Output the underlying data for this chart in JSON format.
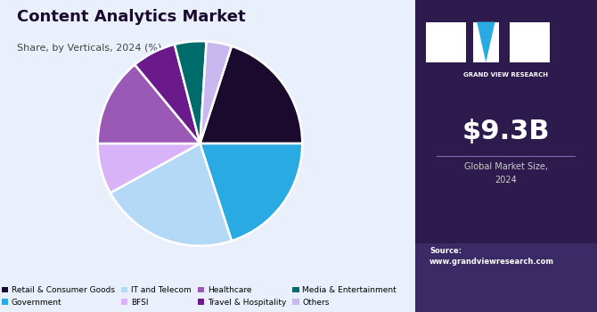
{
  "title": "Content Analytics Market",
  "subtitle": "Share, by Verticals, 2024 (%)",
  "slices": [
    {
      "label": "Retail & Consumer Goods",
      "value": 20,
      "color": "#1a0a2e"
    },
    {
      "label": "Government",
      "value": 20,
      "color": "#29aae2"
    },
    {
      "label": "IT and Telecom",
      "value": 22,
      "color": "#b3d9f7"
    },
    {
      "label": "BFSI",
      "value": 8,
      "color": "#d9b3f7"
    },
    {
      "label": "Healthcare",
      "value": 14,
      "color": "#9b59b6"
    },
    {
      "label": "Travel & Hospitality",
      "value": 7,
      "color": "#6a1a8a"
    },
    {
      "label": "Media & Entertainment",
      "value": 5,
      "color": "#006b6b"
    },
    {
      "label": "Others",
      "value": 4,
      "color": "#c9b8f0"
    }
  ],
  "market_size": "$9.3B",
  "market_label": "Global Market Size,\n2024",
  "source_text": "Source:\nwww.grandviewresearch.com",
  "right_panel_color": "#2d1b4e",
  "left_bg_color": "#eaf0fb",
  "title_color": "#1a0a2e",
  "subtitle_color": "#444444",
  "startangle": 72
}
